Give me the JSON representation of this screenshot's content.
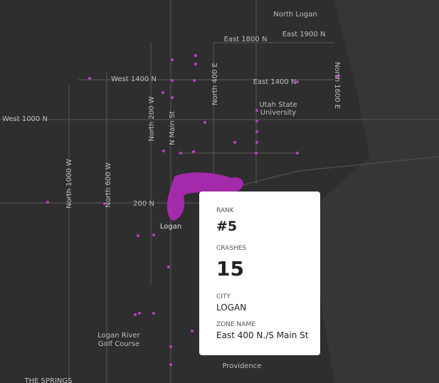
{
  "map": {
    "labels": [
      "North Logan",
      "East 1800 N",
      "East 1900 N",
      "West 1400 N",
      "East 1400 N",
      "North 400 E",
      "Utah State",
      "University",
      "North 1600 E",
      "West 1000 N",
      "North 200 W",
      "N Main St",
      "North 1000 W",
      "North 600 W",
      "200 N",
      "Logan",
      "Logan River",
      "Golf Course",
      "Providence",
      "THE SPRINGS"
    ]
  },
  "tooltip": {
    "rank_label": "RANK",
    "rank": "#5",
    "crashes_label": "CRASHES",
    "crashes": "15",
    "city_label": "CITY",
    "city": "LOGAN",
    "zone_label": "ZONE NAME",
    "zone": "East 400 N./S Main St"
  }
}
